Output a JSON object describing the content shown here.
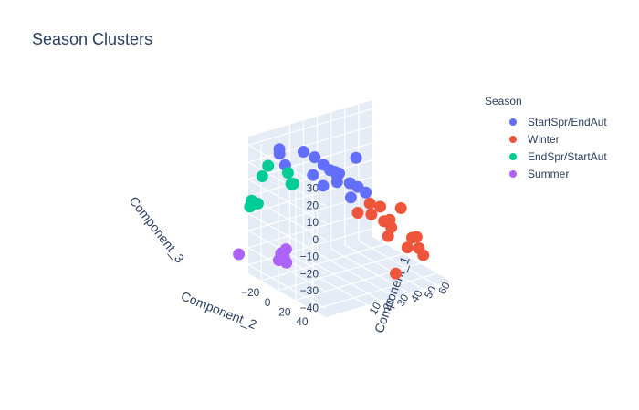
{
  "chart_data": {
    "type": "scatter3d",
    "title": "Season Clusters",
    "legend": {
      "title": "Season",
      "placement": "right"
    },
    "axes": {
      "x": {
        "label": "Component_1",
        "range": [
          -20,
          70
        ],
        "ticks": [
          10,
          20,
          30,
          40,
          50,
          60
        ],
        "tick_labels": [
          "10",
          "20",
          "30",
          "40",
          "50",
          "60"
        ]
      },
      "y": {
        "label": "Component_2",
        "range": [
          -35,
          55
        ],
        "ticks": [
          -20,
          0,
          20,
          40
        ],
        "tick_labels": [
          "−20",
          "0",
          "20",
          "40"
        ]
      },
      "z": {
        "label": "Component_3",
        "range": [
          -45,
          35
        ],
        "ticks": [
          -40,
          -30,
          -20,
          -10,
          0,
          10,
          20,
          30
        ],
        "tick_labels": [
          "−40",
          "−30",
          "−20",
          "−10",
          "0",
          "10",
          "20",
          "30"
        ]
      }
    },
    "series": [
      {
        "name": "StartSpr/EndAut",
        "color": "#636efa",
        "points": [
          [
            -5,
            5,
            34
          ],
          [
            0,
            10,
            31
          ],
          [
            5,
            12,
            26
          ],
          [
            8,
            15,
            23
          ],
          [
            12,
            17,
            19
          ],
          [
            10,
            20,
            17
          ],
          [
            14,
            16,
            20
          ],
          [
            18,
            22,
            15
          ],
          [
            20,
            28,
            14
          ],
          [
            22,
            34,
            12
          ],
          [
            -8,
            -18,
            27
          ],
          [
            -10,
            -15,
            31
          ],
          [
            6,
            24,
            25
          ],
          [
            -12,
            -5,
            25
          ],
          [
            15,
            28,
            9
          ],
          [
            25,
            18,
            27
          ],
          [
            3,
            15,
            15
          ],
          [
            0,
            8,
            20
          ]
        ]
      },
      {
        "name": "Winter",
        "color": "#ef553b",
        "points": [
          [
            30,
            12,
            -8
          ],
          [
            35,
            18,
            -2
          ],
          [
            40,
            22,
            -4
          ],
          [
            45,
            25,
            -12
          ],
          [
            42,
            28,
            -20
          ],
          [
            50,
            30,
            -5
          ],
          [
            55,
            35,
            -22
          ],
          [
            58,
            38,
            -28
          ],
          [
            60,
            40,
            -32
          ],
          [
            48,
            22,
            -18
          ],
          [
            38,
            15,
            -10
          ],
          [
            52,
            45,
            -18
          ],
          [
            40,
            40,
            -38
          ],
          [
            44,
            20,
            -14
          ],
          [
            56,
            28,
            -30
          ]
        ]
      },
      {
        "name": "EndSpr/StartAut",
        "color": "#00cc96",
        "points": [
          [
            -15,
            -20,
            21
          ],
          [
            -18,
            -22,
            15
          ],
          [
            -10,
            -5,
            20
          ],
          [
            -8,
            -2,
            14
          ],
          [
            -12,
            2,
            16
          ],
          [
            -25,
            -25,
            -2
          ],
          [
            -22,
            -28,
            0
          ],
          [
            -20,
            -24,
            -1
          ]
        ]
      },
      {
        "name": "Summer",
        "color": "#ab63fa",
        "points": [
          [
            -30,
            -30,
            -30
          ],
          [
            -15,
            -5,
            -26
          ],
          [
            -14,
            -3,
            -28
          ],
          [
            -12,
            -4,
            -24
          ],
          [
            -16,
            -6,
            -30
          ],
          [
            -13,
            -2,
            -31
          ]
        ]
      }
    ]
  }
}
